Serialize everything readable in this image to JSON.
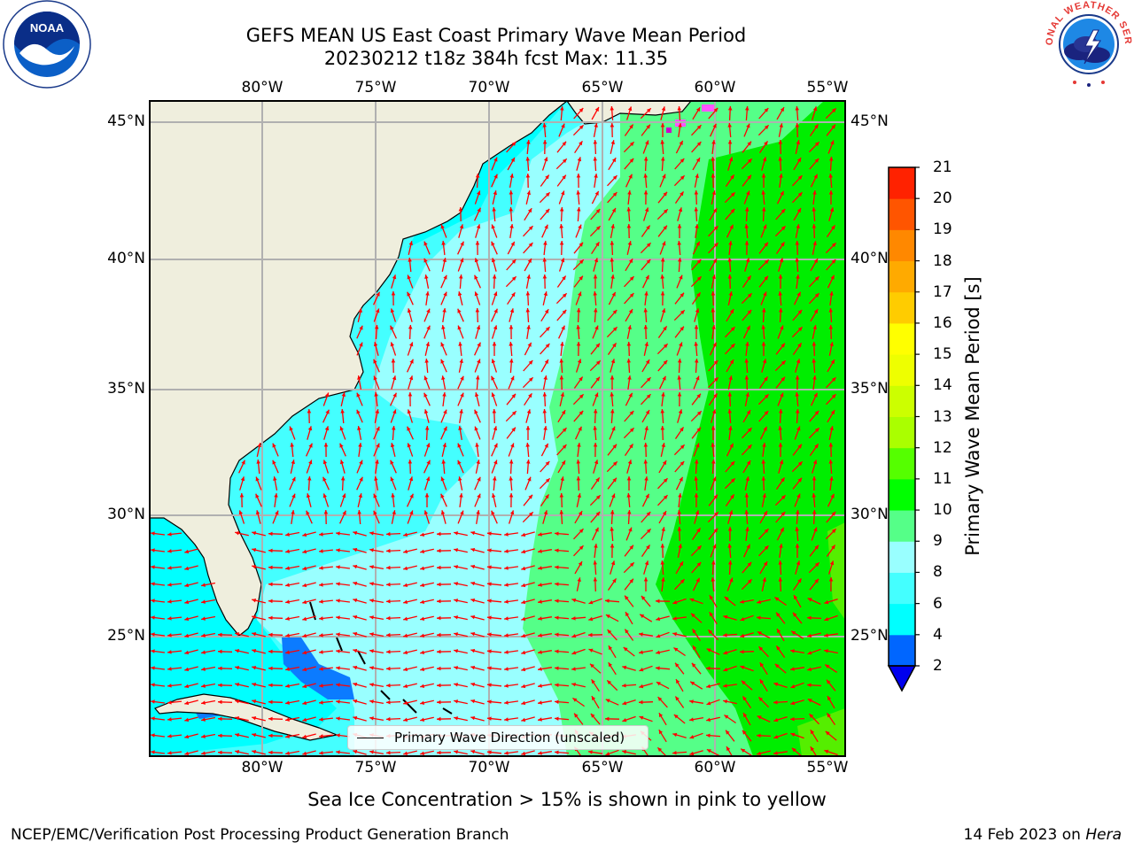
{
  "title": {
    "line1": "GEFS MEAN US East Coast Primary Wave Mean Period",
    "line2": "20230212 t18z 384h fcst   Max: 11.35"
  },
  "axes": {
    "lon_ticks": [
      "80°W",
      "75°W",
      "70°W",
      "65°W",
      "60°W",
      "55°W"
    ],
    "lat_ticks_left": [
      "45°N",
      "40°N",
      "35°N",
      "30°N",
      "25°N"
    ],
    "lat_ticks_right": [
      "45°N",
      "40°N",
      "35°N",
      "30°N",
      "25°N"
    ]
  },
  "colorbar": {
    "label": "Primary Wave Mean Period [s]",
    "ticks": [
      "2",
      "4",
      "6",
      "8",
      "9",
      "10",
      "11",
      "12",
      "13",
      "14",
      "15",
      "16",
      "17",
      "18",
      "19",
      "20",
      "21"
    ],
    "colors": [
      "#0066ff",
      "#00ffff",
      "#44ffff",
      "#99ffff",
      "#55ff88",
      "#00ff00",
      "#55ff00",
      "#aaff00",
      "#ccff00",
      "#eeff00",
      "#ffff00",
      "#ffcc00",
      "#ffaa00",
      "#ff8800",
      "#ff5500",
      "#ff2200",
      "#ff0000"
    ],
    "under_color": "#0000ee"
  },
  "legend": {
    "label": "Primary Wave Direction (unscaled)"
  },
  "footer": {
    "sea_ice_note": "Sea Ice Concentration > 15% is shown in pink to yellow",
    "credit": "NCEP/EMC/Verification Post Processing Product Generation Branch",
    "date": "14 Feb 2023 on ",
    "machine": "Hera"
  },
  "logos": {
    "noaa": "NOAA",
    "nws": "NATIONAL WEATHER SERVICE"
  },
  "colors": {
    "land": "#efeedd",
    "arrows": "#ff0000",
    "grid": "#b0b0b0"
  }
}
